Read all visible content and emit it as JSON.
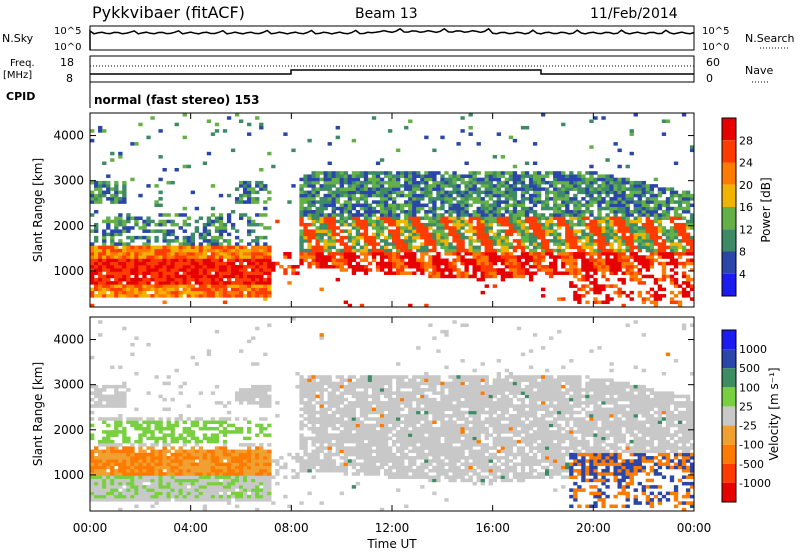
{
  "header": {
    "station": "Pykkvibaer (fitACF)",
    "beam": "Beam 13",
    "date": "11/Feb/2014"
  },
  "panels": {
    "nsky": {
      "label": "N.Sky",
      "ticks": [
        "10^5",
        "10^0"
      ],
      "right_ticks": [
        "10^5",
        "10^0"
      ],
      "right_label": "N.Search"
    },
    "freq": {
      "label_line1": "Freq.",
      "label_line2": "[MHz]",
      "ticks": [
        "18",
        "8"
      ],
      "right_ticks": [
        "60",
        "0"
      ],
      "right_label": "Nave"
    },
    "cpid": {
      "label": "CPID",
      "text": "normal (fast stereo) 153"
    }
  },
  "colors": {
    "power": [
      "#1c1cf0",
      "#2a46a8",
      "#3e8a66",
      "#64b046",
      "#f0b400",
      "#ff7a00",
      "#ff3c00",
      "#e60000"
    ],
    "velocity": [
      "#e60000",
      "#ff3c00",
      "#ff7a00",
      "#f0a030",
      "#c8c8c8",
      "#78d040",
      "#3c8c64",
      "#2a46a8",
      "#1c1cf0"
    ],
    "grey": "#c8c8c8"
  },
  "chart_data": [
    {
      "type": "heatmap",
      "name": "power",
      "ylabel": "Slant Range [km]",
      "yticks": [
        "4000",
        "3000",
        "2000",
        "1000"
      ],
      "ylim": [
        200,
        4500
      ],
      "colorbar_label": "Power [dB]",
      "colorbar_ticks": [
        "28",
        "24",
        "20",
        "16",
        "12",
        "8",
        "4"
      ],
      "clim": [
        0,
        32
      ]
    },
    {
      "type": "heatmap",
      "name": "velocity",
      "ylabel": "Slant Range [km]",
      "yticks": [
        "4000",
        "3000",
        "2000",
        "1000"
      ],
      "ylim": [
        200,
        4500
      ],
      "colorbar_label": "Velocity [m s⁻¹]",
      "colorbar_ticks": [
        "1000",
        "500",
        "100",
        "25",
        "-25",
        "-100",
        "-500",
        "-1000"
      ]
    }
  ],
  "xaxis": {
    "label": "Time UT",
    "ticks": [
      "00:00",
      "04:00",
      "08:00",
      "12:00",
      "16:00",
      "20:00",
      "00:00"
    ],
    "xlim": [
      0,
      24
    ]
  }
}
